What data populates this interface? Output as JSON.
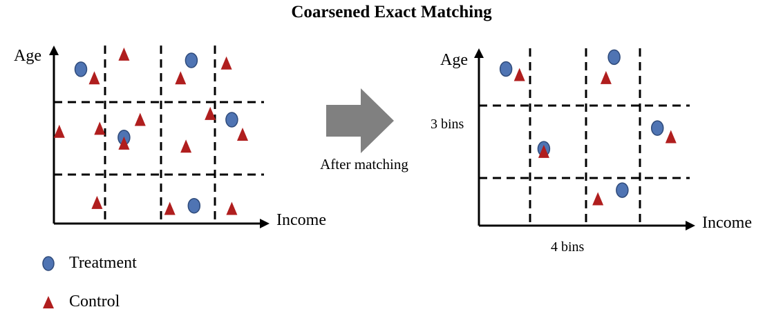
{
  "title": "Coarsened Exact Matching",
  "before_panel": {
    "y_axis_label": "Age",
    "x_axis_label": "Income",
    "treatment_points": [
      [
        0.5,
        2.6
      ],
      [
        2.55,
        2.75
      ],
      [
        3.3,
        1.75
      ],
      [
        1.3,
        1.45
      ],
      [
        2.6,
        0.3
      ]
    ],
    "control_points": [
      [
        0.75,
        2.45
      ],
      [
        1.3,
        2.85
      ],
      [
        2.35,
        2.45
      ],
      [
        3.2,
        2.7
      ],
      [
        0.1,
        1.55
      ],
      [
        0.85,
        1.6
      ],
      [
        1.6,
        1.75
      ],
      [
        2.9,
        1.85
      ],
      [
        3.5,
        1.5
      ],
      [
        1.3,
        1.35
      ],
      [
        2.45,
        1.3
      ],
      [
        0.8,
        0.35
      ],
      [
        2.15,
        0.25
      ],
      [
        3.3,
        0.25
      ]
    ]
  },
  "arrow_label": "After matching",
  "after_panel": {
    "y_axis_label": "Age",
    "x_axis_label": "Income",
    "y_bins_label": "3 bins",
    "x_bins_label": "4 bins",
    "treatment_points": [
      [
        0.5,
        2.65
      ],
      [
        2.5,
        2.85
      ],
      [
        3.3,
        1.65
      ],
      [
        1.2,
        1.3
      ],
      [
        2.65,
        0.6
      ]
    ],
    "control_points": [
      [
        0.75,
        2.55
      ],
      [
        2.35,
        2.5
      ],
      [
        3.55,
        1.5
      ],
      [
        1.2,
        1.25
      ],
      [
        2.2,
        0.45
      ]
    ]
  },
  "legend": {
    "treatment_label": "Treatment",
    "control_label": "Control"
  },
  "colors": {
    "treatment_fill": "#4f74b3",
    "treatment_stroke": "#2e4a7a",
    "control_fill": "#b01e1e",
    "arrow_fill": "#808080",
    "axis": "#000000"
  }
}
